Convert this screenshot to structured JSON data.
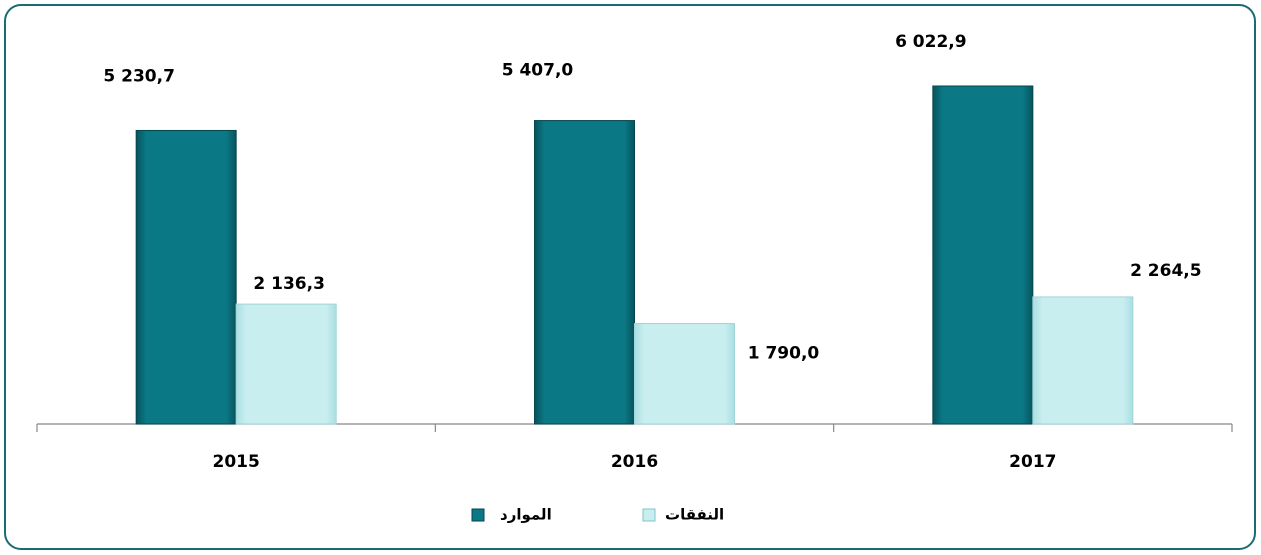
{
  "chart_data": {
    "type": "bar",
    "categories": [
      "2015",
      "2016",
      "2017"
    ],
    "series": [
      {
        "name": "الموارد",
        "color": "#0b7885",
        "values": [
          5230.7,
          5407.0,
          6022.9
        ],
        "value_labels": [
          "5 230,7",
          "5 407,0",
          "6 022,9"
        ]
      },
      {
        "name": "النفقات",
        "color": "#c9eef0",
        "values": [
          2136.3,
          1790.0,
          2264.5
        ],
        "value_labels": [
          "2 136,3",
          "1 790,0",
          "2 264,5"
        ]
      }
    ]
  }
}
